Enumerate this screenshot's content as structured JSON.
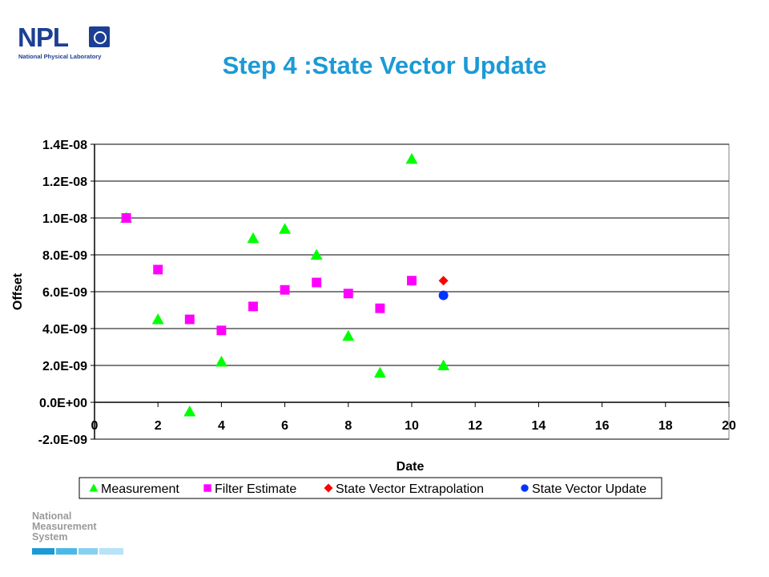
{
  "logo": {
    "mark": "NPL",
    "crest_icon": "npl-crest-icon",
    "subtitle": "National Physical Laboratory"
  },
  "title": "Step 4 :State Vector Update",
  "footer_logo": {
    "lines": [
      "National",
      "Measurement",
      "System"
    ],
    "bar_colors": [
      "#1b9ad6",
      "#4cb8e6",
      "#86d0f0",
      "#b6e3f7"
    ]
  },
  "chart_data": {
    "type": "scatter",
    "xlabel": "Date",
    "ylabel": "Offset",
    "xlim": [
      0,
      20
    ],
    "ylim": [
      -2e-09,
      1.4e-08
    ],
    "x_ticks": [
      0,
      2,
      4,
      6,
      8,
      10,
      12,
      14,
      16,
      18,
      20
    ],
    "x_tick_labels": [
      "0",
      "2",
      "4",
      "6",
      "8",
      "10",
      "12",
      "14",
      "16",
      "18",
      "20"
    ],
    "y_ticks": [
      -2e-09,
      0,
      2e-09,
      4e-09,
      6e-09,
      8e-09,
      1e-08,
      1.2e-08,
      1.4e-08
    ],
    "y_tick_labels": [
      "-2.0E-09",
      "0.0E+00",
      "2.0E-09",
      "4.0E-09",
      "6.0E-09",
      "8.0E-09",
      "1.0E-08",
      "1.2E-08",
      "1.4E-08"
    ],
    "grid": "horizontal",
    "legend_position": "bottom",
    "series": [
      {
        "name": "Measurement",
        "marker": "triangle",
        "color": "#00ff00",
        "x": [
          1,
          2,
          3,
          4,
          5,
          6,
          7,
          8,
          9,
          10,
          11
        ],
        "y": [
          1e-08,
          4.5e-09,
          -5e-10,
          2.2e-09,
          8.9e-09,
          9.4e-09,
          8e-09,
          3.6e-09,
          1.6e-09,
          1.32e-08,
          2e-09
        ]
      },
      {
        "name": "Filter Estimate",
        "marker": "square",
        "color": "#ff00ff",
        "x": [
          1,
          2,
          3,
          4,
          5,
          6,
          7,
          8,
          9,
          10
        ],
        "y": [
          1e-08,
          7.2e-09,
          4.5e-09,
          3.9e-09,
          5.2e-09,
          6.1e-09,
          6.5e-09,
          5.9e-09,
          5.1e-09,
          6.6e-09
        ]
      },
      {
        "name": "State Vector Extrapolation",
        "marker": "diamond",
        "color": "#ff0000",
        "x": [
          11
        ],
        "y": [
          6.6e-09
        ]
      },
      {
        "name": "State Vector Update",
        "marker": "circle",
        "color": "#0033ff",
        "x": [
          11
        ],
        "y": [
          5.8e-09
        ]
      }
    ]
  }
}
